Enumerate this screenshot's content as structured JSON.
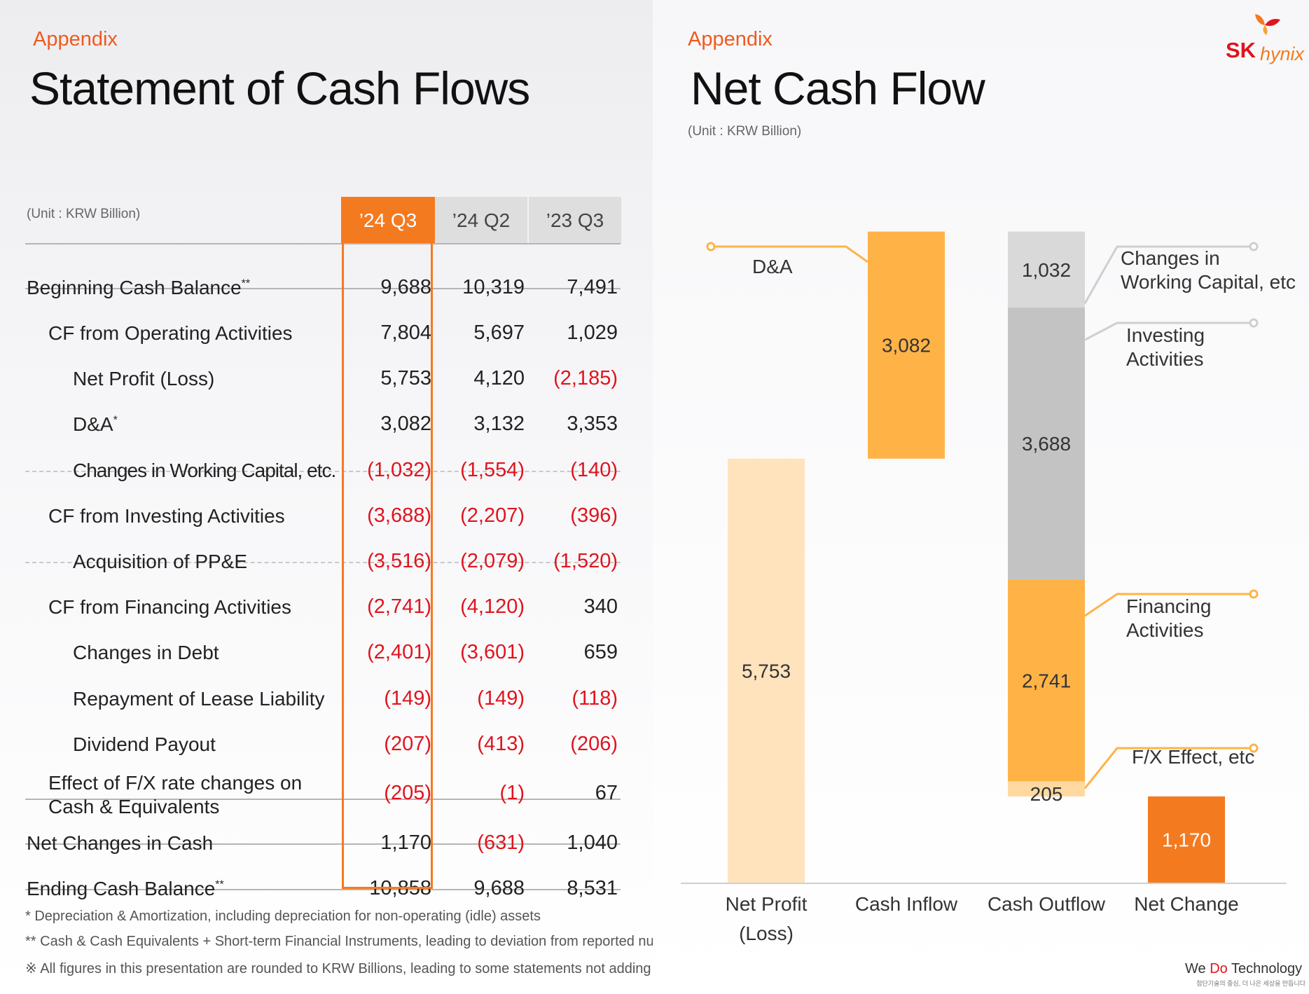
{
  "left": {
    "kicker": "Appendix",
    "title": "Statement of Cash Flows",
    "unit": "(Unit : KRW Billion)",
    "columns": [
      "’24 Q3",
      "’24 Q2",
      "’23 Q3"
    ],
    "rows": [
      {
        "label": "Beginning Cash Balance",
        "sup": "**",
        "values": [
          "9,688",
          "10,319",
          "7,491"
        ]
      },
      {
        "label": "CF from Operating Activities",
        "sup": "",
        "values": [
          "7,804",
          "5,697",
          "1,029"
        ]
      },
      {
        "label": "Net Profit (Loss)",
        "sup": "",
        "values": [
          "5,753",
          "4,120",
          "(2,185)"
        ]
      },
      {
        "label": "D&A",
        "sup": "*",
        "values": [
          "3,082",
          "3,132",
          "3,353"
        ]
      },
      {
        "label": "Changes in Working Capital, etc.",
        "sup": "",
        "values": [
          "(1,032)",
          "(1,554)",
          "(140)"
        ]
      },
      {
        "label": "CF from Investing Activities",
        "sup": "",
        "values": [
          "(3,688)",
          "(2,207)",
          "(396)"
        ]
      },
      {
        "label": "Acquisition of PP&E",
        "sup": "",
        "values": [
          "(3,516)",
          "(2,079)",
          "(1,520)"
        ]
      },
      {
        "label": "CF from Financing Activities",
        "sup": "",
        "values": [
          "(2,741)",
          "(4,120)",
          "340"
        ]
      },
      {
        "label": "Changes in Debt",
        "sup": "",
        "values": [
          "(2,401)",
          "(3,601)",
          "659"
        ]
      },
      {
        "label": "Repayment of Lease Liability",
        "sup": "",
        "values": [
          "(149)",
          "(149)",
          "(118)"
        ]
      },
      {
        "label": "Dividend Payout",
        "sup": "",
        "values": [
          "(207)",
          "(413)",
          "(206)"
        ]
      },
      {
        "label": "Effect of F/X rate changes on",
        "label2": "Cash & Equivalents",
        "sup": "",
        "values": [
          "(205)",
          "(1)",
          "67"
        ]
      },
      {
        "label": "Net Changes in Cash",
        "sup": "",
        "values": [
          "1,170",
          "(631)",
          "1,040"
        ]
      },
      {
        "label": "Ending Cash Balance",
        "sup": "**",
        "values": [
          "10,858",
          "9,688",
          "8,531"
        ]
      }
    ],
    "footnotes": [
      "* Depreciation & Amortization, including depreciation for non-operating (idle) assets",
      "** Cash & Cash Equivalents + Short-term Financial Instruments, leading to deviation from reported numbers",
      "※ All figures in this presentation are rounded to KRW Billions, leading to some statements not adding up completely"
    ]
  },
  "right": {
    "kicker": "Appendix",
    "title": "Net Cash Flow",
    "unit": "(Unit : KRW Billion)",
    "logo": {
      "brand": "SK",
      "name": "hynix"
    },
    "tagline": {
      "pre": "We ",
      "accent": "Do",
      "post": " Technology",
      "sub": "첨단기술의 중심, 더 나은 세상을 만듭니다"
    }
  },
  "colors": {
    "accent": "#f05a1e",
    "orange_dark": "#f47a20",
    "orange_mid": "#ffb347",
    "orange_light": "#ffe3bd",
    "gray_light": "#d9d9d9",
    "gray_mid": "#c3c3c3",
    "negative": "#e0141e"
  },
  "chart_data": {
    "type": "bar",
    "subtype": "waterfall",
    "title": "Net Cash Flow",
    "unit": "KRW Billion",
    "categories": [
      "Net Profit (Loss)",
      "Cash Inflow",
      "Cash Outflow",
      "Net Change"
    ],
    "category_lines": [
      [
        "Net Profit",
        "(Loss)"
      ],
      [
        "Cash Inflow"
      ],
      [
        "Cash Outflow"
      ],
      [
        "Net Change"
      ]
    ],
    "ylim": [
      0,
      9000
    ],
    "segments": [
      {
        "category": "Net Profit (Loss)",
        "name": "Net Profit",
        "value": 5753,
        "base": 0,
        "label": "5,753",
        "color": "#ffe3bd"
      },
      {
        "category": "Cash Inflow",
        "name": "D&A",
        "value": 3082,
        "base": 5753,
        "label": "3,082",
        "color": "#ffb347"
      },
      {
        "category": "Cash Outflow",
        "name": "Changes in Working Capital, etc",
        "value": 1032,
        "base": 7803,
        "label": "1,032",
        "color": "#d9d9d9"
      },
      {
        "category": "Cash Outflow",
        "name": "Investing Activities",
        "value": 3688,
        "base": 4115,
        "label": "3,688",
        "color": "#c3c3c3"
      },
      {
        "category": "Cash Outflow",
        "name": "Financing Activities",
        "value": 2741,
        "base": 1374,
        "label": "2,741",
        "color": "#ffb347"
      },
      {
        "category": "Cash Outflow",
        "name": "F/X Effect, etc",
        "value": 205,
        "base": 1169,
        "label": "205",
        "color": "#ffd9a0"
      },
      {
        "category": "Net Change",
        "name": "Net Change",
        "value": 1170,
        "base": 0,
        "label": "1,170",
        "color": "#f47a20"
      }
    ],
    "annotations": [
      {
        "text": "D&A",
        "segment": "D&A"
      },
      {
        "text": "Changes in",
        "text2": "Working Capital, etc",
        "segment": "Changes in Working Capital, etc"
      },
      {
        "text": "Investing",
        "text2": "Activities",
        "segment": "Investing Activities"
      },
      {
        "text": "Financing",
        "text2": "Activities",
        "segment": "Financing Activities"
      },
      {
        "text": "F/X Effect, etc",
        "segment": "F/X Effect, etc"
      }
    ]
  }
}
